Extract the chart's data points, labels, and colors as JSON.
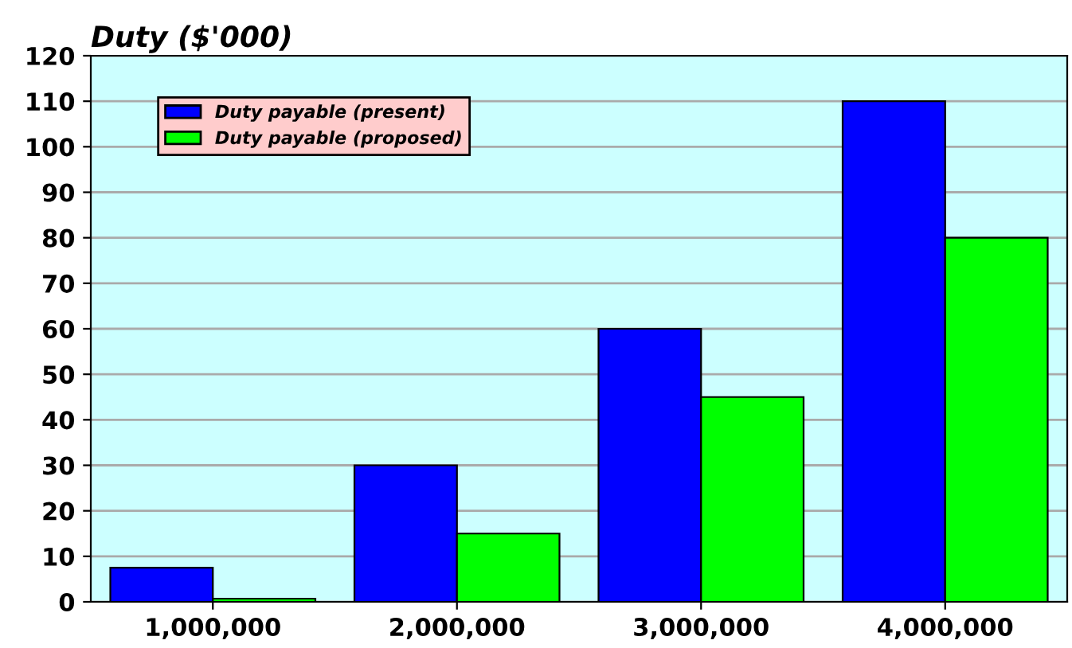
{
  "chart_data": {
    "type": "bar",
    "title": "Duty ($'000)",
    "categories": [
      "1,000,000",
      "2,000,000",
      "3,000,000",
      "4,000,000"
    ],
    "series": [
      {
        "name": "Duty payable (present)",
        "color": "#0000ff",
        "values": [
          7.5,
          30,
          60,
          110
        ]
      },
      {
        "name": "Duty payable (proposed)",
        "color": "#00ff00",
        "values": [
          0.7,
          15,
          45,
          80
        ]
      }
    ],
    "ylim": [
      0,
      120
    ],
    "yticks": [
      0,
      10,
      20,
      30,
      40,
      50,
      60,
      70,
      80,
      90,
      100,
      110,
      120
    ],
    "grid": "y",
    "legend": "top left"
  }
}
